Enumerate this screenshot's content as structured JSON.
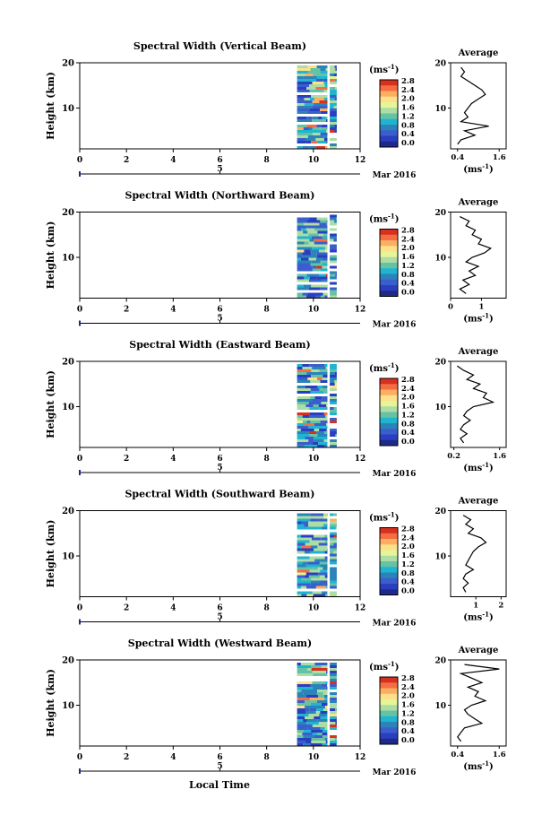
{
  "colorbar": {
    "unit": "(ms",
    "unit_sup": "-1",
    "unit_close": ")",
    "ticks": [
      "2.8",
      "2.4",
      "2.0",
      "1.6",
      "1.2",
      "0.8",
      "0.4",
      "0.0"
    ],
    "colors": [
      "#d7301f",
      "#f46d43",
      "#fdae61",
      "#fee08b",
      "#e6f598",
      "#abdda4",
      "#66c2a5",
      "#1fb5d0",
      "#2b83ba",
      "#3a5fcd",
      "#2a3fbf",
      "#1e2a8a"
    ]
  },
  "time_axis": {
    "ticks": [
      "0",
      "2",
      "4",
      "6",
      "8",
      "10",
      "12"
    ],
    "date_tick": "5",
    "date_label": "Mar 2016",
    "xlabel": "Local Time"
  },
  "height_axis": {
    "ylabel": "Height (km)",
    "ticks": [
      "20",
      "10"
    ]
  },
  "avg_panel": {
    "title": "Average",
    "xlabel": "(ms",
    "xlabel_sup": "-1",
    "xlabel_close": ")"
  },
  "chart_data": [
    {
      "type": "heatmap",
      "title": "Spectral Width (Vertical Beam)",
      "xlabel": "",
      "ylabel": "Height (km)",
      "xlim": [
        0,
        12
      ],
      "ylim": [
        1,
        20
      ],
      "data_blocks_time": [
        [
          9.3,
          10.6
        ],
        [
          10.7,
          11.0
        ]
      ],
      "avg_xticks": [
        "0.4",
        "1.6"
      ],
      "avg_xlim": [
        0.2,
        1.8
      ],
      "avg_profile": [
        [
          19,
          0.5
        ],
        [
          18,
          0.6
        ],
        [
          17,
          0.5
        ],
        [
          16,
          0.7
        ],
        [
          15,
          0.9
        ],
        [
          14,
          1.1
        ],
        [
          13,
          1.2
        ],
        [
          12,
          1.0
        ],
        [
          11,
          0.8
        ],
        [
          10,
          0.7
        ],
        [
          9,
          0.6
        ],
        [
          8,
          0.7
        ],
        [
          7,
          0.5
        ],
        [
          6,
          1.3
        ],
        [
          5,
          0.6
        ],
        [
          4,
          0.9
        ],
        [
          3,
          0.5
        ],
        [
          2,
          0.4
        ]
      ]
    },
    {
      "type": "heatmap",
      "title": "Spectral Width (Northward Beam)",
      "xlabel": "",
      "ylabel": "Height (km)",
      "xlim": [
        0,
        12
      ],
      "ylim": [
        1,
        20
      ],
      "data_blocks_time": [
        [
          9.3,
          10.6
        ],
        [
          10.7,
          11.0
        ]
      ],
      "avg_xticks": [
        "0",
        "1"
      ],
      "avg_xlim": [
        0,
        1.8
      ],
      "avg_profile": [
        [
          19,
          0.3
        ],
        [
          18,
          0.6
        ],
        [
          17,
          0.5
        ],
        [
          16,
          0.8
        ],
        [
          15,
          0.7
        ],
        [
          14,
          1.0
        ],
        [
          13,
          0.9
        ],
        [
          12,
          1.3
        ],
        [
          11,
          1.1
        ],
        [
          10,
          0.7
        ],
        [
          9,
          0.5
        ],
        [
          8,
          0.9
        ],
        [
          7,
          0.6
        ],
        [
          6,
          0.8
        ],
        [
          5,
          0.4
        ],
        [
          4,
          0.6
        ],
        [
          3,
          0.3
        ],
        [
          2,
          0.5
        ]
      ]
    },
    {
      "type": "heatmap",
      "title": "Spectral Width (Eastward Beam)",
      "xlabel": "",
      "ylabel": "Height (km)",
      "xlim": [
        0,
        12
      ],
      "ylim": [
        1,
        20
      ],
      "data_blocks_time": [
        [
          9.3,
          10.6
        ],
        [
          10.7,
          11.0
        ]
      ],
      "avg_xticks": [
        "0.2",
        "1.6"
      ],
      "avg_xlim": [
        0.1,
        1.8
      ],
      "avg_profile": [
        [
          19,
          0.3
        ],
        [
          18,
          0.5
        ],
        [
          17,
          0.8
        ],
        [
          16,
          0.6
        ],
        [
          15,
          1.0
        ],
        [
          14,
          0.8
        ],
        [
          13,
          1.2
        ],
        [
          12,
          1.1
        ],
        [
          11,
          1.4
        ],
        [
          10,
          0.8
        ],
        [
          9,
          0.6
        ],
        [
          8,
          0.5
        ],
        [
          7,
          0.7
        ],
        [
          6,
          0.5
        ],
        [
          5,
          0.4
        ],
        [
          4,
          0.6
        ],
        [
          3,
          0.4
        ],
        [
          2,
          0.5
        ]
      ]
    },
    {
      "type": "heatmap",
      "title": "Spectral Width (Southward Beam)",
      "xlabel": "",
      "ylabel": "Height (km)",
      "xlim": [
        0,
        12
      ],
      "ylim": [
        1,
        20
      ],
      "data_blocks_time": [
        [
          9.3,
          10.6
        ],
        [
          10.7,
          11.0
        ]
      ],
      "avg_xticks": [
        "1",
        "2"
      ],
      "avg_xlim": [
        0,
        2.2
      ],
      "avg_profile": [
        [
          19,
          0.5
        ],
        [
          18,
          0.8
        ],
        [
          17,
          0.6
        ],
        [
          16,
          0.9
        ],
        [
          15,
          0.7
        ],
        [
          14,
          1.2
        ],
        [
          13,
          1.4
        ],
        [
          12,
          1.1
        ],
        [
          11,
          0.9
        ],
        [
          10,
          0.8
        ],
        [
          9,
          0.7
        ],
        [
          8,
          0.6
        ],
        [
          7,
          0.9
        ],
        [
          6,
          0.6
        ],
        [
          5,
          0.5
        ],
        [
          4,
          0.7
        ],
        [
          3,
          0.5
        ],
        [
          2,
          0.6
        ]
      ]
    },
    {
      "type": "heatmap",
      "title": "Spectral Width (Westward Beam)",
      "xlabel": "",
      "ylabel": "Height (km)",
      "xlim": [
        0,
        12
      ],
      "ylim": [
        1,
        20
      ],
      "data_blocks_time": [
        [
          9.3,
          10.6
        ],
        [
          10.7,
          11.0
        ]
      ],
      "avg_xticks": [
        "0.4",
        "1.6"
      ],
      "avg_xlim": [
        0.2,
        1.8
      ],
      "avg_profile": [
        [
          19,
          0.6
        ],
        [
          18,
          1.6
        ],
        [
          17,
          0.5
        ],
        [
          16,
          0.8
        ],
        [
          15,
          1.1
        ],
        [
          14,
          0.7
        ],
        [
          13,
          1.0
        ],
        [
          12,
          0.9
        ],
        [
          11,
          1.2
        ],
        [
          10,
          0.8
        ],
        [
          9,
          0.6
        ],
        [
          8,
          0.7
        ],
        [
          7,
          0.9
        ],
        [
          6,
          1.1
        ],
        [
          5,
          0.6
        ],
        [
          4,
          0.5
        ],
        [
          3,
          0.4
        ],
        [
          2,
          0.5
        ]
      ]
    }
  ]
}
